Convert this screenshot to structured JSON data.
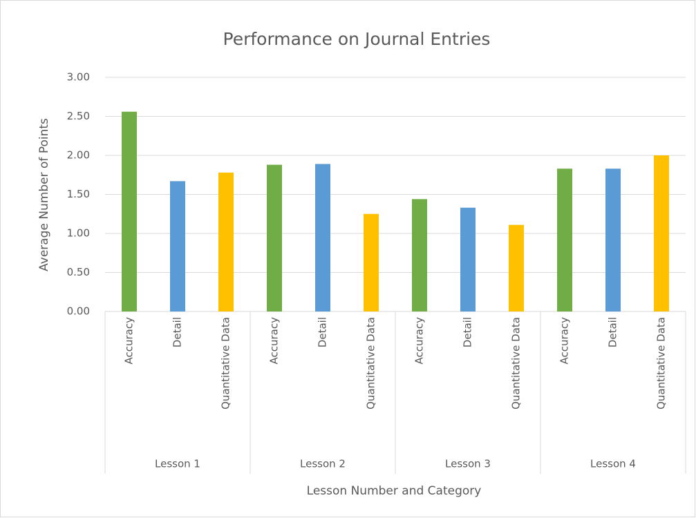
{
  "chart_data": {
    "type": "bar",
    "title": "Performance on Journal Entries",
    "x_label": "Lesson Number and Category",
    "y_label": "Average Number of Points",
    "categories": [
      "Lesson 1",
      "Lesson 2",
      "Lesson 3",
      "Lesson 4"
    ],
    "series": [
      {
        "name": "Accuracy",
        "color": "#70ad47",
        "values": [
          2.56,
          1.88,
          1.44,
          1.83
        ]
      },
      {
        "name": "Detail",
        "color": "#5b9bd5",
        "values": [
          1.67,
          1.89,
          1.33,
          1.83
        ]
      },
      {
        "name": "Quantitative Data",
        "color": "#ffc000",
        "values": [
          1.78,
          1.25,
          1.11,
          2.0
        ]
      }
    ],
    "ylim": [
      0,
      3
    ],
    "yticks": [
      {
        "value": 0,
        "label": "0.00"
      },
      {
        "value": 0.5,
        "label": "0.50"
      },
      {
        "value": 1,
        "label": "1.00"
      },
      {
        "value": 1.5,
        "label": "1.50"
      },
      {
        "value": 2,
        "label": "2.00"
      },
      {
        "value": 2.5,
        "label": "2.50"
      },
      {
        "value": 3,
        "label": "3.00"
      }
    ],
    "grid": true
  }
}
